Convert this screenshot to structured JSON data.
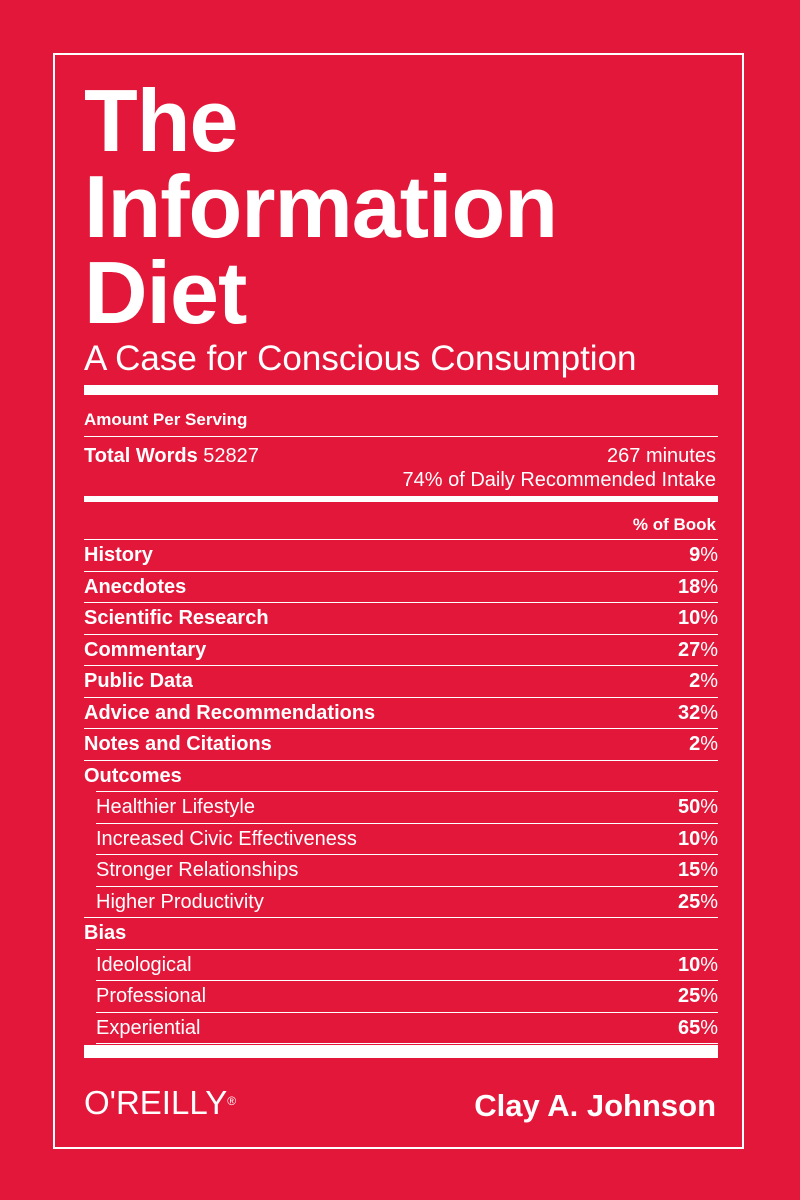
{
  "colors": {
    "background": "#e2173a",
    "foreground": "#ffffff"
  },
  "title_lines": [
    "The",
    "Information",
    "Diet"
  ],
  "subtitle": "A Case for Conscious Consumption",
  "serving_label": "Amount Per Serving",
  "total_words": {
    "label": "Total Words",
    "value": "52827"
  },
  "intake": {
    "minutes": "267 minutes",
    "daily": "74% of Daily Recommended Intake"
  },
  "column_header": "% of Book",
  "rows": [
    {
      "name": "History",
      "num": "9",
      "pct": "%"
    },
    {
      "name": "Anecdotes",
      "num": "18",
      "pct": "%"
    },
    {
      "name": "Scientific Research",
      "num": "10",
      "pct": "%"
    },
    {
      "name": "Commentary",
      "num": "27",
      "pct": "%"
    },
    {
      "name": "Public Data",
      "num": "2",
      "pct": "%"
    },
    {
      "name": "Advice and Recommendations",
      "num": "32",
      "pct": "%"
    },
    {
      "name": "Notes and Citations",
      "num": "2",
      "pct": "%"
    },
    {
      "name": "Outcomes",
      "num": "",
      "pct": ""
    },
    {
      "name": "Healthier Lifestyle",
      "num": "50",
      "pct": "%"
    },
    {
      "name": "Increased Civic Effectiveness",
      "num": "10",
      "pct": "%"
    },
    {
      "name": "Stronger Relationships",
      "num": "15",
      "pct": "%"
    },
    {
      "name": "Higher Productivity",
      "num": "25",
      "pct": "%"
    },
    {
      "name": "Bias",
      "num": "",
      "pct": ""
    },
    {
      "name": "Ideological",
      "num": "10",
      "pct": "%"
    },
    {
      "name": "Professional",
      "num": "25",
      "pct": "%"
    },
    {
      "name": "Experiential",
      "num": "65",
      "pct": "%"
    }
  ],
  "publisher": {
    "name": "O'REILLY",
    "mark": "®"
  },
  "author": "Clay A. Johnson"
}
